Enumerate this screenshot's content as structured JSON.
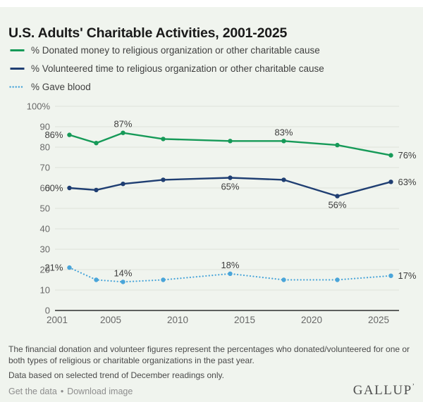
{
  "header": {
    "title": "U.S. Adults' Charitable Activities, 2001-2025"
  },
  "legend": {
    "items": [
      {
        "label": "% Donated money to religious organization or other charitable cause",
        "color": "#169a58",
        "style": "solid"
      },
      {
        "label": "% Volunteered time to religious organization or other charitable cause",
        "color": "#1f3e72",
        "style": "solid"
      },
      {
        "label": "% Gave blood",
        "color": "#4aa5d9",
        "style": "dotted"
      }
    ]
  },
  "chart_data": {
    "type": "line",
    "title": "U.S. Adults' Charitable Activities, 2001-2025",
    "x_years": [
      2001,
      2003,
      2005,
      2008,
      2013,
      2017,
      2021,
      2025
    ],
    "x_note": "December readings in each listed year",
    "x_axis_ticks": [
      "2001",
      "2005",
      "2010",
      "2015",
      "2020",
      "2025"
    ],
    "y_axis_ticks": [
      "100%",
      "90",
      "80",
      "70",
      "60",
      "50",
      "40",
      "30",
      "20",
      "10",
      "0"
    ],
    "ylim": [
      0,
      100
    ],
    "grid": true,
    "legend_position": "top",
    "series": [
      {
        "name": "% Donated money to religious organization or other charitable cause",
        "color": "#169a58",
        "style": "solid",
        "values": [
          86,
          82,
          87,
          84,
          83,
          83,
          81,
          76
        ],
        "point_labels": [
          {
            "index": 0,
            "text": "86%",
            "pos": "left"
          },
          {
            "index": 2,
            "text": "87%",
            "pos": "above"
          },
          {
            "index": 5,
            "text": "83%",
            "pos": "above"
          },
          {
            "index": 7,
            "text": "76%",
            "pos": "right"
          }
        ]
      },
      {
        "name": "% Volunteered time to religious organization or other charitable cause",
        "color": "#1f3e72",
        "style": "solid",
        "values": [
          60,
          59,
          62,
          64,
          65,
          64,
          56,
          63
        ],
        "point_labels": [
          {
            "index": 0,
            "text": "60%",
            "pos": "left"
          },
          {
            "index": 4,
            "text": "65%",
            "pos": "below"
          },
          {
            "index": 6,
            "text": "56%",
            "pos": "below"
          },
          {
            "index": 7,
            "text": "63%",
            "pos": "right"
          }
        ]
      },
      {
        "name": "% Gave blood",
        "color": "#4aa5d9",
        "style": "dotted",
        "values": [
          21,
          15,
          14,
          15,
          18,
          15,
          15,
          17
        ],
        "point_labels": [
          {
            "index": 0,
            "text": "21%",
            "pos": "left"
          },
          {
            "index": 2,
            "text": "14%",
            "pos": "above"
          },
          {
            "index": 4,
            "text": "18%",
            "pos": "above"
          },
          {
            "index": 7,
            "text": "17%",
            "pos": "right"
          }
        ]
      }
    ]
  },
  "footnotes": {
    "note1": "The financial donation and volunteer figures represent the percentages who donated/volunteered for one or both types of religious or charitable organizations in the past year.",
    "note2": "Data based on selected trend of December readings only."
  },
  "footer": {
    "links": [
      {
        "label": "Get the data"
      },
      {
        "label": "Download image"
      }
    ],
    "separator": "•",
    "logo_text": "GALLUP",
    "logo_mark": "ʼ"
  }
}
